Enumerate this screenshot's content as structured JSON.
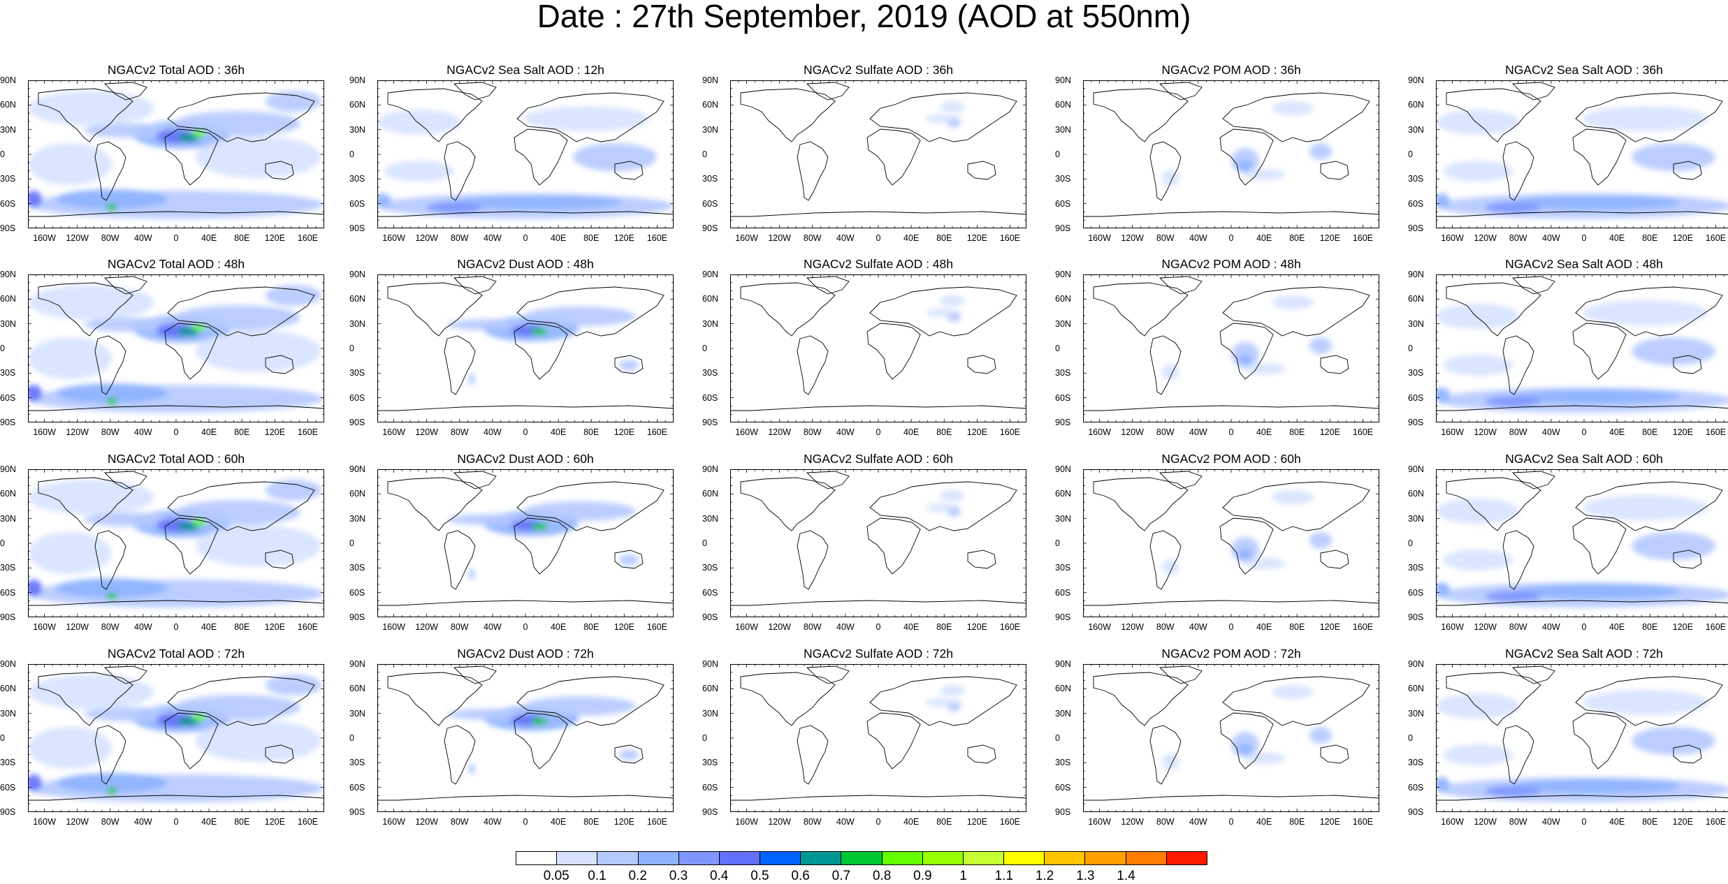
{
  "title": "Date : 27th September, 2019 (AOD at 550nm)",
  "panels": [
    [
      "NGACv2 Total AOD : 36h",
      "NGACv2 Sea Salt  AOD : 12h",
      "NGACv2 Sulfate AOD : 36h",
      "NGACv2 POM AOD : 36h",
      "NGACv2 Sea Salt  AOD : 36h"
    ],
    [
      "NGACv2 Total AOD : 48h",
      "NGACv2 Dust AOD : 48h",
      "NGACv2 Sulfate AOD : 48h",
      "NGACv2 POM AOD : 48h",
      "NGACv2 Sea Salt  AOD : 48h"
    ],
    [
      "NGACv2 Total AOD : 60h",
      "NGACv2 Dust AOD : 60h",
      "NGACv2 Sulfate AOD : 60h",
      "NGACv2 POM AOD : 60h",
      "NGACv2 Sea Salt  AOD : 60h"
    ],
    [
      "NGACv2 Total AOD : 72h",
      "NGACv2 Dust AOD : 72h",
      "NGACv2 Sulfate AOD : 72h",
      "NGACv2 POM AOD : 72h",
      "NGACv2 Sea Salt  AOD : 72h"
    ]
  ],
  "lat_labels": [
    "90N",
    "60N",
    "30N",
    "0",
    "30S",
    "60S",
    "90S"
  ],
  "lon_labels": [
    "160W",
    "120W",
    "80W",
    "40W",
    "0",
    "40E",
    "80E",
    "120E",
    "160E"
  ],
  "colorbar": {
    "labels": [
      "0.05",
      "0.1",
      "0.2",
      "0.3",
      "0.4",
      "0.5",
      "0.6",
      "0.7",
      "0.8",
      "0.9",
      "1",
      "1.1",
      "1.2",
      "1.3",
      "1.4"
    ],
    "colors": [
      "#ffffff",
      "#d6e2ff",
      "#b5c9ff",
      "#8eb2ff",
      "#7f96ff",
      "#6370f8",
      "#0063ff",
      "#009696",
      "#00c633",
      "#63ff00",
      "#96ff00",
      "#c6ff33",
      "#ffff00",
      "#ffc600",
      "#ffa000",
      "#ff7c00",
      "#ff1900"
    ]
  }
}
